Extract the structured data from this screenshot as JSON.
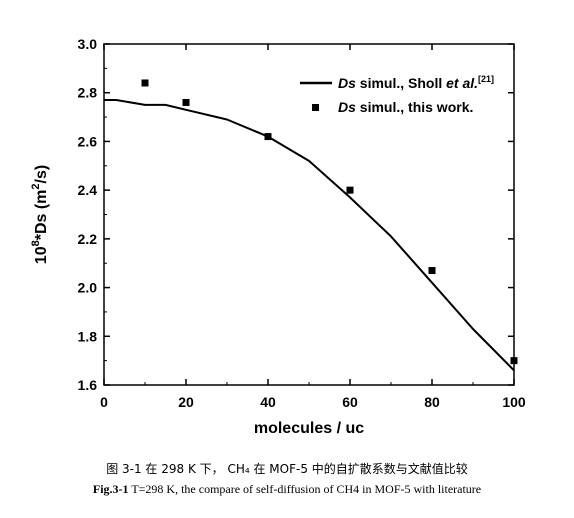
{
  "chart_data": {
    "type": "scatter",
    "xlabel": "molecules / uc",
    "ylabel": "10^8*Ds (m^2/s)",
    "ylabel_parts": {
      "base": "10",
      "exp": "8",
      "mid": "*Ds (m",
      "sq": "2",
      "end": "/s)"
    },
    "xlim": [
      0,
      100
    ],
    "ylim": [
      1.6,
      3.0
    ],
    "x_ticks": [
      0,
      20,
      40,
      60,
      80,
      100
    ],
    "x_tick_labels": [
      "0",
      "20",
      "40",
      "60",
      "80",
      "100"
    ],
    "y_ticks": [
      1.6,
      1.8,
      2.0,
      2.2,
      2.4,
      2.6,
      2.8,
      3.0
    ],
    "y_tick_labels": [
      "1.6",
      "1.8",
      "2.0",
      "2.2",
      "2.4",
      "2.6",
      "2.8",
      "3.0"
    ],
    "grid": false,
    "legend_position": "top-right",
    "series": [
      {
        "name": "Ds simul., Sholl et al.[21]",
        "legend": {
          "italic1": "Ds",
          "plain": " simul., Sholl ",
          "italic2": "et al.",
          "sup": "[21]"
        },
        "style": "line",
        "color": "#000000",
        "x": [
          0,
          3,
          10,
          15,
          20,
          30,
          40,
          50,
          60,
          70,
          80,
          90,
          100
        ],
        "y": [
          2.77,
          2.77,
          2.75,
          2.75,
          2.73,
          2.69,
          2.62,
          2.52,
          2.37,
          2.21,
          2.02,
          1.83,
          1.66
        ]
      },
      {
        "name": "Ds simul., this work.",
        "legend": {
          "italic1": "Ds",
          "plain": " simul., this work."
        },
        "style": "marker-square",
        "color": "#000000",
        "x": [
          10,
          20,
          40,
          60,
          80,
          100
        ],
        "y": [
          2.84,
          2.76,
          2.62,
          2.4,
          2.07,
          1.7
        ]
      }
    ]
  },
  "caption": {
    "zh": "图 3-1  在 298 K 下，  CH₄ 在  MOF-5  中的自扩散系数与文献值比较",
    "en_prefix": "Fig.3-1",
    "en_text": " T=298 K, the compare of self-diffusion of CH4 in MOF-5 with literature"
  }
}
